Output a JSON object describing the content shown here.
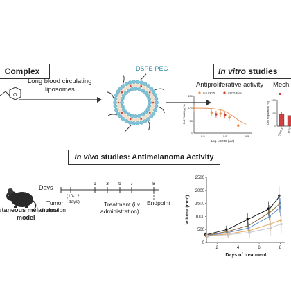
{
  "top": {
    "complex_label": "Complex",
    "arrow_text_line1": "Long blood circulating",
    "arrow_text_line2": "liposomes",
    "liposome_label": "DSPE-PEG",
    "in_vitro_label_italic": "In vitro",
    "in_vitro_label_rest": " studies"
  },
  "antiproliferative": {
    "title": "Antiproliferative activity",
    "ylabel": "Cell Viability (%)",
    "xlabel": "Log LCR35 (μM)",
    "legend": [
      "Lip-LCR35",
      "LCR35 Free"
    ],
    "yticks": [
      "150",
      "100",
      "50",
      "0"
    ],
    "xticks": [
      "0.5",
      "1.0",
      "1.5"
    ]
  },
  "mechanism": {
    "title": "Mech",
    "ylabel": "Cell Population (%)",
    "yticks": [
      "100",
      "50",
      "0"
    ],
    "xticks": [
      "Control",
      "LCR"
    ]
  },
  "in_vivo": {
    "title_italic": "In vivo",
    "title_rest": " studies: Antimelanoma Activity",
    "days_label": "Days",
    "day_marks": [
      "1",
      "3",
      "5",
      "7",
      "8"
    ],
    "tumor_induction_line1": "Tumor",
    "tumor_induction_line2": "induction",
    "interval_line1": "(10-12",
    "interval_line2": "days)",
    "treatment_line1": "Treatment (i.v.",
    "treatment_line2": "administration)",
    "endpoint": "Endpoint",
    "model_line1": "utaneous melanoma",
    "model_line2": "model"
  },
  "chart_data": [
    {
      "type": "line",
      "title": "Antiproliferative activity",
      "xlabel": "Log LCR35 (μM)",
      "ylabel": "Cell Viability (%)",
      "ylim": [
        0,
        150
      ],
      "xlim": [
        0.3,
        1.6
      ],
      "series": [
        {
          "name": "Lip-LCR35",
          "color": "#e8965a",
          "x": [
            0.3,
            0.7,
            0.9,
            1.1,
            1.3
          ],
          "y": [
            100,
            82,
            78,
            62,
            30
          ]
        },
        {
          "name": "LCR35 Free",
          "color": "#d0402a",
          "x": [
            0.8,
            1.0
          ],
          "y": [
            75,
            72
          ]
        }
      ]
    },
    {
      "type": "bar",
      "title": "Mech",
      "ylabel": "Cell Population (%)",
      "ylim": [
        0,
        100
      ],
      "categories": [
        "Control",
        "LCR"
      ],
      "series": [
        {
          "color": "#d0402a",
          "values": [
            45,
            40
          ]
        }
      ]
    },
    {
      "type": "line",
      "xlabel": "Days of treatment",
      "ylabel": "Volume (mm³)",
      "ylim": [
        0,
        2500
      ],
      "xlim": [
        1,
        8.5
      ],
      "yticks": [
        0,
        500,
        1000,
        1500,
        2000,
        2500
      ],
      "xticks": [
        2,
        4,
        6,
        8
      ],
      "series": [
        {
          "color": "#111111",
          "x": [
            1,
            3,
            5,
            7,
            8
          ],
          "y": [
            300,
            500,
            900,
            1300,
            1800
          ]
        },
        {
          "color": "#8a6a3a",
          "x": [
            1,
            3,
            5,
            7,
            8
          ],
          "y": [
            280,
            420,
            650,
            1150,
            1500
          ]
        },
        {
          "color": "#5a8ac8",
          "x": [
            1,
            3,
            5,
            7,
            8
          ],
          "y": [
            260,
            380,
            550,
            1000,
            1350
          ]
        },
        {
          "color": "#e8a860",
          "x": [
            1,
            3,
            5,
            7,
            8
          ],
          "y": [
            250,
            330,
            450,
            700,
            850
          ]
        },
        {
          "color": "#c8c8c8",
          "x": [
            1,
            3,
            5,
            7,
            8
          ],
          "y": [
            240,
            300,
            380,
            550,
            700
          ]
        }
      ]
    }
  ]
}
